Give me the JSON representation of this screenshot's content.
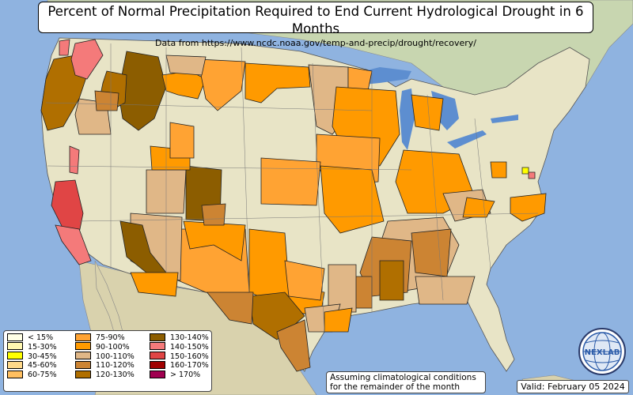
{
  "title": "Percent of Normal Precipitation Required to End Current Hydrological Drought in 6 Months",
  "subtitle": "Data from https://www.ncdc.noaa.gov/temp-and-precip/drought/recovery/",
  "legend": {
    "columns": [
      [
        {
          "label": "< 15%",
          "color": "#ffffe6"
        },
        {
          "label": "15-30%",
          "color": "#fff7b0"
        },
        {
          "label": "30-45%",
          "color": "#ffff00"
        },
        {
          "label": "45-60%",
          "color": "#ffd989"
        },
        {
          "label": "60-75%",
          "color": "#ffbf60"
        }
      ],
      [
        {
          "label": "75-90%",
          "color": "#ffa333"
        },
        {
          "label": "90-100%",
          "color": "#ff9a00"
        },
        {
          "label": "100-110%",
          "color": "#e0b787"
        },
        {
          "label": "110-120%",
          "color": "#cc8433"
        },
        {
          "label": "120-130%",
          "color": "#b06f00"
        }
      ],
      [
        {
          "label": "130-140%",
          "color": "#8c5d00"
        },
        {
          "label": "140-150%",
          "color": "#f47a7a"
        },
        {
          "label": "150-160%",
          "color": "#e04545"
        },
        {
          "label": "160-170%",
          "color": "#a00000"
        },
        {
          "label": "> 170%",
          "color": "#a00050"
        }
      ]
    ]
  },
  "note": {
    "line1": "Assuming climatological conditions",
    "line2": "for the remainder of the month"
  },
  "valid": "Valid: February 05 2024",
  "logo": {
    "text": "NEXLAB",
    "icon": "globe-logo-icon"
  },
  "colors": {
    "ocean": "#8fb3e0",
    "land": "#e8e4c6",
    "lakes": "#5d8ed0"
  }
}
